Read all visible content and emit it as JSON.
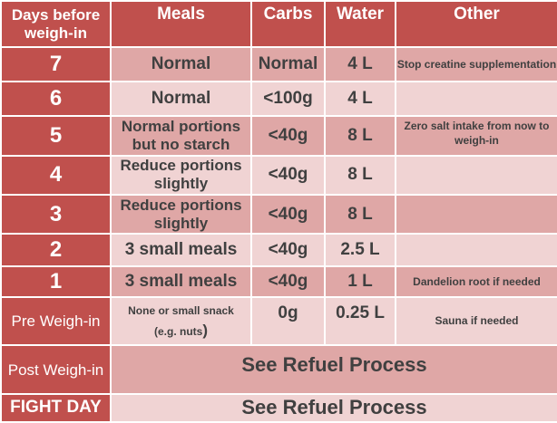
{
  "headers": {
    "days": "Days before weigh-in",
    "meals": "Meals",
    "carbs": "Carbs",
    "water": "Water",
    "other": "Other"
  },
  "rows": [
    {
      "day": "7",
      "meals": "Normal",
      "carbs": "Normal",
      "water": "4 L",
      "other": "Stop creatine supplementation"
    },
    {
      "day": "6",
      "meals": "Normal",
      "carbs": "<100g",
      "water": "4 L",
      "other": ""
    },
    {
      "day": "5",
      "meals": "Normal portions but no starch",
      "carbs": "<40g",
      "water": "8 L",
      "other": "Zero salt intake from now to weigh-in"
    },
    {
      "day": "4",
      "meals": "Reduce portions slightly",
      "carbs": "<40g",
      "water": "8 L",
      "other": ""
    },
    {
      "day": "3",
      "meals": "Reduce portions slightly",
      "carbs": "<40g",
      "water": "8 L",
      "other": ""
    },
    {
      "day": "2",
      "meals": "3 small meals",
      "carbs": "<40g",
      "water": "2.5 L",
      "other": ""
    },
    {
      "day": "1",
      "meals": "3 small meals",
      "carbs": "<40g",
      "water": "1 L",
      "other": "Dandelion root if needed"
    }
  ],
  "pre_weigh_in": {
    "label": "Pre Weigh-in",
    "meals_main": "None or small snack",
    "meals_note": "(e.g. nuts",
    "meals_paren": ")",
    "carbs": "0g",
    "water": "0.25 L",
    "other": "Sauna if needed"
  },
  "post_weigh_in": {
    "label": "Post Weigh-in",
    "text": "See Refuel Process"
  },
  "fight_day": {
    "label": "FIGHT DAY",
    "text": "See Refuel Process"
  },
  "colors": {
    "header": "#c0504d",
    "row_dark": "#dfa7a6",
    "row_light": "#f0d3d3",
    "body_text": "#404040"
  }
}
